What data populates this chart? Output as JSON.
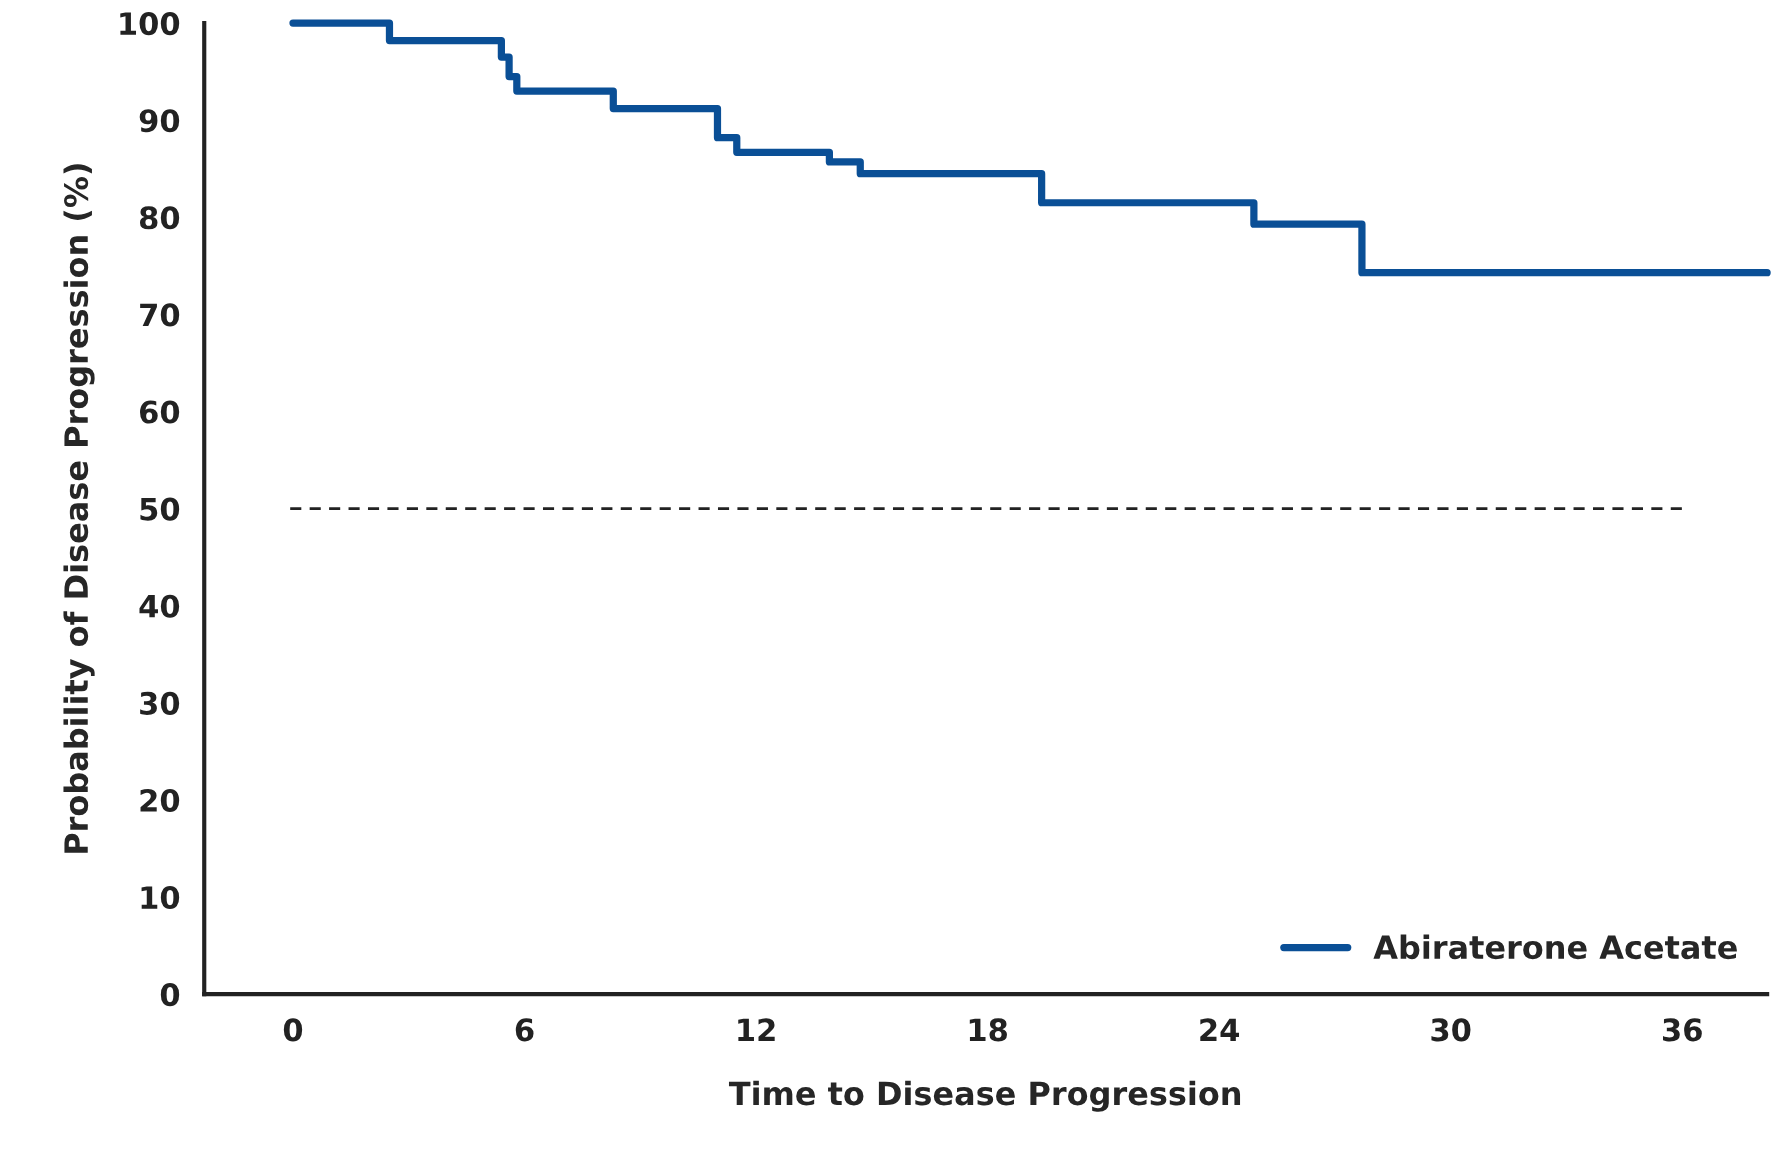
{
  "chart_data": {
    "type": "step",
    "xlabel": "Time to Disease Progression",
    "ylabel": "Probability of Disease Progression (%)",
    "series": [
      {
        "name": "Abiraterone Acetate",
        "color": "#0a4f96",
        "x": [
          0,
          2.5,
          5.4,
          5.6,
          5.8,
          8.3,
          11.0,
          11.5,
          13.9,
          14.7,
          19.4,
          24.9,
          27.7,
          38.2
        ],
        "values": [
          100,
          98.2,
          96.5,
          94.5,
          93.0,
          91.2,
          88.2,
          86.7,
          85.7,
          84.5,
          81.5,
          79.3,
          74.3,
          74.3
        ]
      }
    ],
    "xlim": [
      -2.3,
      38.2
    ],
    "xticks": [
      0,
      6,
      12,
      18,
      24,
      30,
      36
    ],
    "ylim": [
      0,
      100
    ],
    "yticks": [
      0,
      10,
      20,
      30,
      40,
      50,
      60,
      70,
      80,
      90,
      100
    ],
    "ref_lines": [
      {
        "axis": "y",
        "value": 50,
        "color": "#222222",
        "line_style": "dashed"
      }
    ],
    "legend": "bottom right",
    "grid": false
  }
}
